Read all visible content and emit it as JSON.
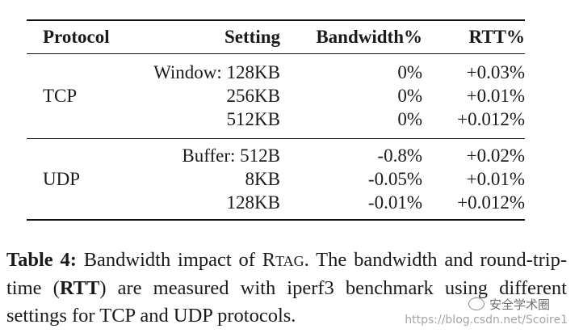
{
  "table": {
    "headers": [
      "Protocol",
      "Setting",
      "Bandwidth%",
      "RTT%"
    ],
    "groups": [
      {
        "protocol": "TCP",
        "rows": [
          {
            "setting": "Window: 128KB",
            "bandwidth": "0%",
            "rtt": "+0.03%"
          },
          {
            "setting": "256KB",
            "bandwidth": "0%",
            "rtt": "+0.01%"
          },
          {
            "setting": "512KB",
            "bandwidth": "0%",
            "rtt": "+0.012%"
          }
        ]
      },
      {
        "protocol": "UDP",
        "rows": [
          {
            "setting": "Buffer: 512B",
            "bandwidth": "-0.8%",
            "rtt": "+0.02%"
          },
          {
            "setting": "8KB",
            "bandwidth": "-0.05%",
            "rtt": "+0.01%"
          },
          {
            "setting": "128KB",
            "bandwidth": "-0.01%",
            "rtt": "+0.012%"
          }
        ]
      }
    ]
  },
  "caption": {
    "label": "Table 4:",
    "text_1": "Bandwidth impact of",
    "name_initial": "R",
    "name_rest": "TAG",
    "text_2": ". The bandwidth and round-trip-time (",
    "bold_abbrev": "RTT",
    "text_3": ") are measured with iperf3 benchmark using different settings for TCP and UDP protocols."
  },
  "watermark": {
    "account": "安全学术圈",
    "url": "https://blog.csdn.net/Scoire1"
  }
}
